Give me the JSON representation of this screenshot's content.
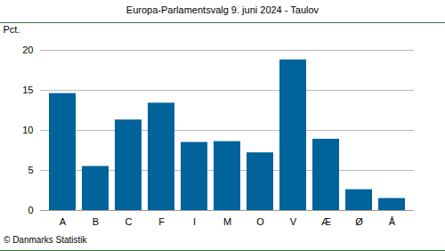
{
  "chart_data": {
    "type": "bar",
    "title": "Europa-Parlamentsvalg 9. juni 2024 - Taulov",
    "y_label": "Pct.",
    "caption": "© Danmarks Statistik",
    "categories": [
      "A",
      "B",
      "C",
      "F",
      "I",
      "M",
      "O",
      "V",
      "Æ",
      "Ø",
      "Å"
    ],
    "values": [
      14.6,
      5.5,
      11.3,
      13.4,
      8.5,
      8.6,
      7.2,
      18.8,
      8.9,
      2.6,
      1.5
    ],
    "color": "#00639a",
    "ylim": [
      0,
      20
    ],
    "yticks": [
      0,
      5,
      10,
      15,
      20
    ],
    "grid": true
  }
}
